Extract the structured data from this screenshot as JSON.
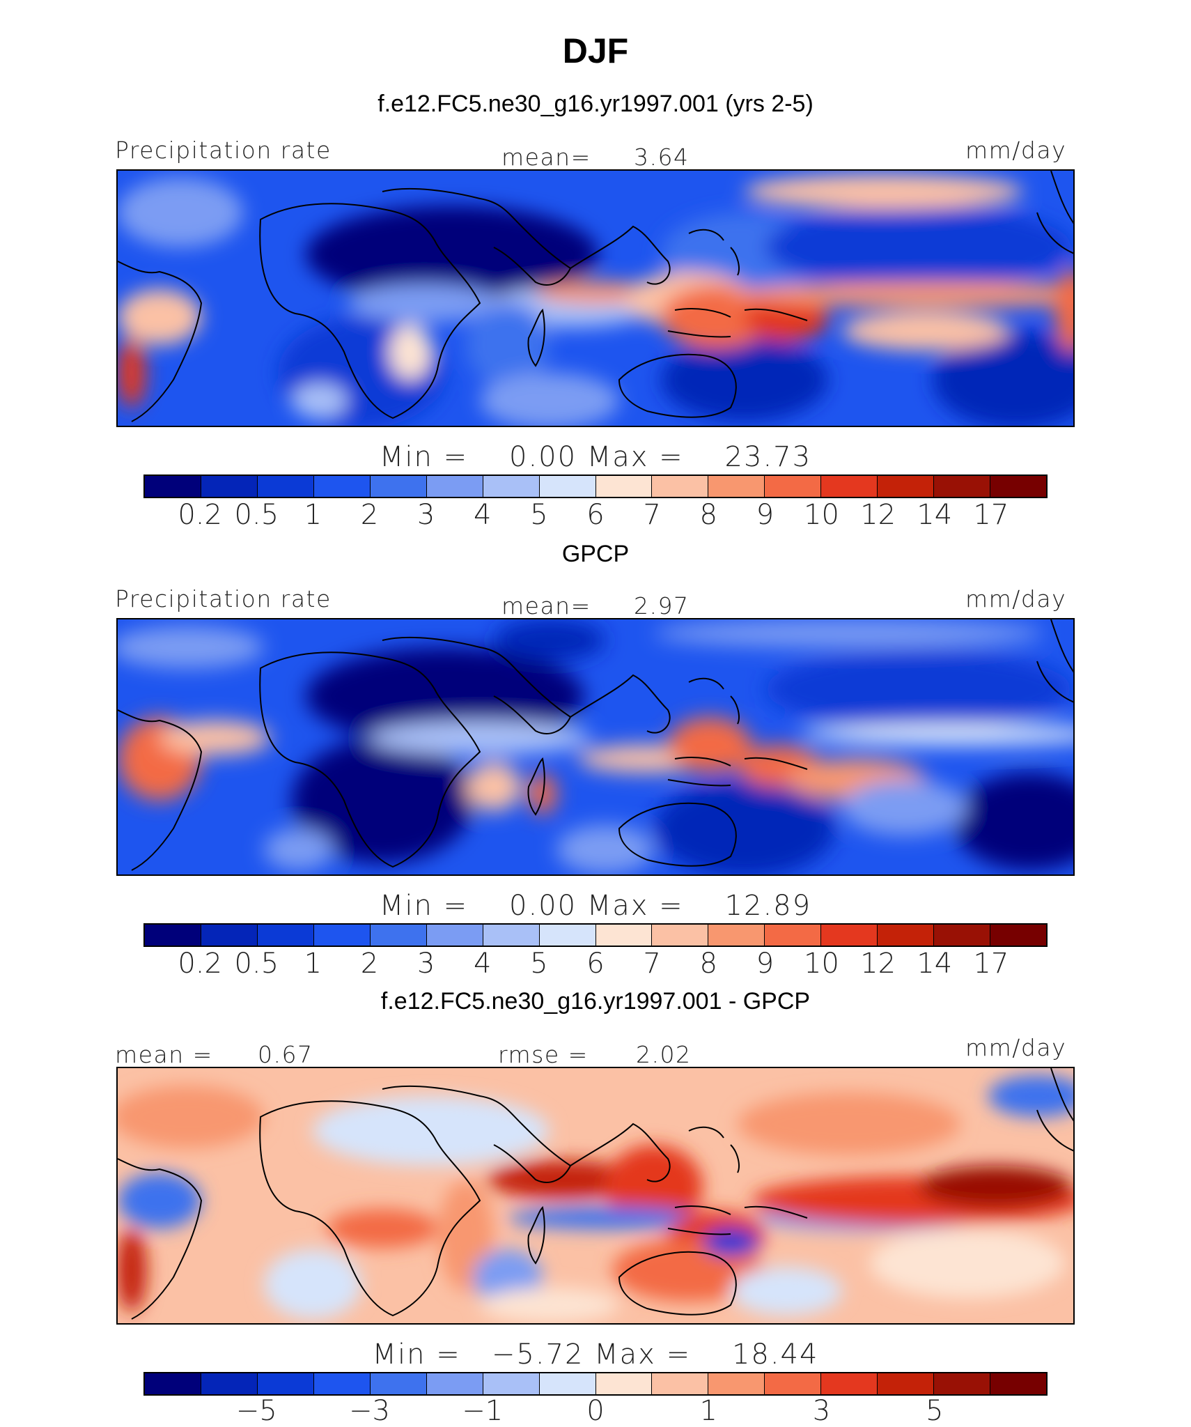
{
  "title": "DJF",
  "colors": {
    "abs_scale": [
      "#00007a",
      "#0425b8",
      "#0b3ad6",
      "#1e55ef",
      "#3e72ee",
      "#7b9cf3",
      "#a9c0f7",
      "#d6e4fb",
      "#fde4d3",
      "#fbc1a5",
      "#f8976f",
      "#f36a45",
      "#e4381f",
      "#c42208",
      "#991105",
      "#770000"
    ],
    "diff_scale": [
      "#00007a",
      "#0425b8",
      "#0b3ad6",
      "#1e55ef",
      "#3e72ee",
      "#7b9cf3",
      "#a9c0f7",
      "#d6e4fb",
      "#fde4d3",
      "#fbc1a5",
      "#f8976f",
      "#f36a45",
      "#e4381f",
      "#c42208",
      "#991105",
      "#770000"
    ]
  },
  "panels": [
    {
      "title": "f.e12.FC5.ne30_g16.yr1997.001 (yrs 2-5)",
      "left_label": "Precipitation rate",
      "center_label": "mean=",
      "center_value": "3.64",
      "right_label": "mm/day",
      "minmax": "Min =    0.00 Max =    23.73",
      "tick_labels": [
        "0.2",
        "0.5",
        "1",
        "2",
        "3",
        "4",
        "5",
        "6",
        "7",
        "8",
        "9",
        "10",
        "12",
        "14",
        "17"
      ]
    },
    {
      "title": "GPCP",
      "left_label": "Precipitation rate",
      "center_label": "mean=",
      "center_value": "2.97",
      "right_label": "mm/day",
      "minmax": "Min =    0.00 Max =    12.89",
      "tick_labels": [
        "0.2",
        "0.5",
        "1",
        "2",
        "3",
        "4",
        "5",
        "6",
        "7",
        "8",
        "9",
        "10",
        "12",
        "14",
        "17"
      ]
    },
    {
      "title": "f.e12.FC5.ne30_g16.yr1997.001 - GPCP",
      "left_label": "mean =",
      "left_value": "0.67",
      "center_label": "rmse =",
      "center_value": "2.02",
      "right_label": "mm/day",
      "minmax": "Min =   −5.72 Max =    18.44",
      "tick_labels": [
        "−5",
        "−3",
        "−1",
        "0",
        "1",
        "3",
        "5"
      ]
    }
  ]
}
